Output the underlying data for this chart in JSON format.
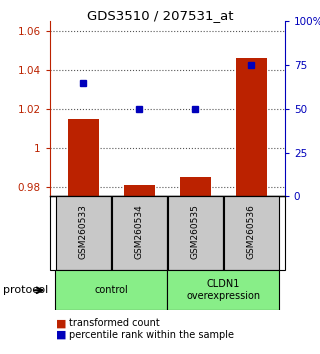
{
  "title": "GDS3510 / 207531_at",
  "samples": [
    "GSM260533",
    "GSM260534",
    "GSM260535",
    "GSM260536"
  ],
  "bar_values": [
    1.015,
    0.981,
    0.985,
    1.046
  ],
  "percentile_values": [
    65,
    50,
    50,
    75
  ],
  "ylim_left": [
    0.975,
    1.065
  ],
  "ylim_right": [
    0,
    100
  ],
  "yticks_left": [
    0.98,
    1.0,
    1.02,
    1.04,
    1.06
  ],
  "ytick_labels_left": [
    "0.98",
    "1",
    "1.02",
    "1.04",
    "1.06"
  ],
  "yticks_right": [
    0,
    25,
    50,
    75,
    100
  ],
  "ytick_labels_right": [
    "0",
    "25",
    "50",
    "75",
    "100%"
  ],
  "bar_color": "#bb2200",
  "dot_color": "#0000bb",
  "bar_width": 0.55,
  "group_color": "#88ee88",
  "sample_box_color": "#c8c8c8",
  "protocol_label": "protocol",
  "legend_bar_label": "transformed count",
  "legend_dot_label": "percentile rank within the sample",
  "dotted_line_color": "#555555",
  "background_color": "#ffffff"
}
